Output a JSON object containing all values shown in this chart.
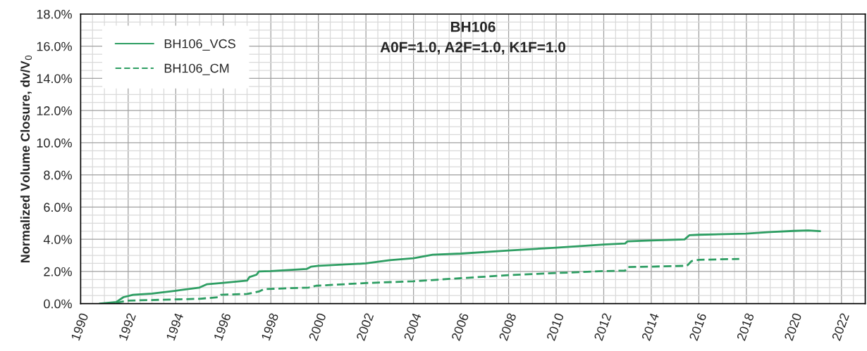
{
  "chart_data": {
    "type": "line",
    "title": "BH106",
    "subtitle": "A0F=1.0, A2F=1.0, K1F=1.0",
    "ylabel": "Normalized Volume Closure, dv/V$_{0}$",
    "series": [
      {
        "name": "BH106_VCS",
        "color": "#2e9e63",
        "line_style": "solid",
        "x": [
          1990.8,
          1991.5,
          1991.8,
          1992.2,
          1993,
          1994,
          1995,
          1995.3,
          1996,
          1997,
          1997.1,
          1997.4,
          1997.5,
          1998,
          1999.5,
          1999.7,
          2000,
          2002,
          2003,
          2004,
          2004.8,
          2006,
          2008,
          2010,
          2012,
          2012.9,
          2013,
          2014,
          2015.4,
          2015.6,
          2016,
          2018,
          2019,
          2020,
          2020.6,
          2021.1
        ],
        "values": [
          0,
          0.1,
          0.4,
          0.55,
          0.62,
          0.8,
          1.0,
          1.2,
          1.29,
          1.43,
          1.65,
          1.8,
          2.0,
          2.02,
          2.15,
          2.3,
          2.35,
          2.5,
          2.7,
          2.82,
          3.04,
          3.11,
          3.3,
          3.48,
          3.67,
          3.74,
          3.87,
          3.92,
          3.99,
          4.25,
          4.28,
          4.35,
          4.45,
          4.52,
          4.55,
          4.5
        ]
      },
      {
        "name": "BH106_CM",
        "color": "#2e9e63",
        "line_style": "dashed",
        "x": [
          1991,
          1991.5,
          1992,
          1994,
          1995,
          1995.8,
          1995.9,
          1997,
          1997.5,
          1997.7,
          1999.6,
          1999.9,
          2002,
          2004,
          2006,
          2008,
          2010,
          2012,
          2012.9,
          2013,
          2014,
          2015.5,
          2015.7,
          2016,
          2017.7
        ],
        "values": [
          0,
          0.05,
          0.19,
          0.26,
          0.3,
          0.4,
          0.55,
          0.6,
          0.75,
          0.9,
          1.0,
          1.11,
          1.28,
          1.39,
          1.58,
          1.77,
          1.9,
          2.02,
          2.05,
          2.27,
          2.3,
          2.35,
          2.65,
          2.72,
          2.78
        ]
      }
    ],
    "xlim": [
      1990,
      2023
    ],
    "xticks": [
      1990,
      1992,
      1994,
      1996,
      1998,
      2000,
      2002,
      2004,
      2006,
      2008,
      2010,
      2012,
      2014,
      2016,
      2018,
      2020,
      2022
    ],
    "ylim": [
      0,
      18
    ],
    "yticks": [
      {
        "value": 0,
        "label": "0.0%"
      },
      {
        "value": 2,
        "label": "2.0%"
      },
      {
        "value": 4,
        "label": "4.0%"
      },
      {
        "value": 6,
        "label": "6.0%"
      },
      {
        "value": 8,
        "label": "8.0%"
      },
      {
        "value": 10,
        "label": "10.0%"
      },
      {
        "value": 12,
        "label": "12.0%"
      },
      {
        "value": 14,
        "label": "14.0%"
      },
      {
        "value": 16,
        "label": "16.0%"
      },
      {
        "value": 18,
        "label": "18.0%"
      }
    ],
    "grid": true,
    "legend": "top left"
  }
}
